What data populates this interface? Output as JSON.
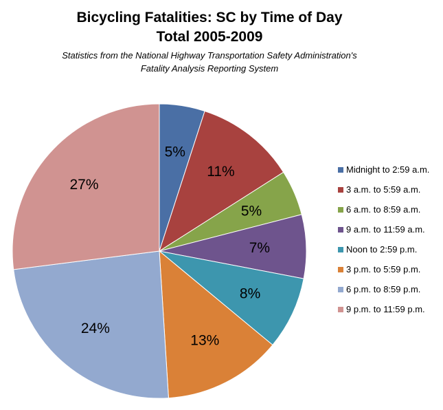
{
  "chart_data": {
    "type": "pie",
    "title_line1": "Bicycling Fatalities: SC by Time of Day",
    "title_line2": "Total 2005-2009",
    "subtitle_line1": "Statistics from the National Highway Transportation Safety Administration's",
    "subtitle_line2": "Fatality Analysis Reporting System",
    "legend_position": "right",
    "start_angle_deg": 0,
    "direction": "clockwise",
    "slices": [
      {
        "label": "Midnight to 2:59 a.m.",
        "value": 5,
        "display": "5%",
        "color": "#4a6fa5"
      },
      {
        "label": "3 a.m. to 5:59 a.m.",
        "value": 11,
        "display": "11%",
        "color": "#a8423f"
      },
      {
        "label": "6 a.m. to 8:59 a.m.",
        "value": 5,
        "display": "5%",
        "color": "#86a44a"
      },
      {
        "label": "9 a.m. to 11:59 a.m.",
        "value": 7,
        "display": "7%",
        "color": "#6e548d"
      },
      {
        "label": "Noon to 2:59 p.m.",
        "value": 8,
        "display": "8%",
        "color": "#3d96ae"
      },
      {
        "label": "3 p.m. to 5:59 p.m.",
        "value": 13,
        "display": "13%",
        "color": "#da8137"
      },
      {
        "label": "6 p.m. to 8:59 p.m.",
        "value": 24,
        "display": "24%",
        "color": "#93a9cf"
      },
      {
        "label": "9 p.m. to 11:59 p.m.",
        "value": 27,
        "display": "27%",
        "color": "#d09391"
      }
    ]
  }
}
